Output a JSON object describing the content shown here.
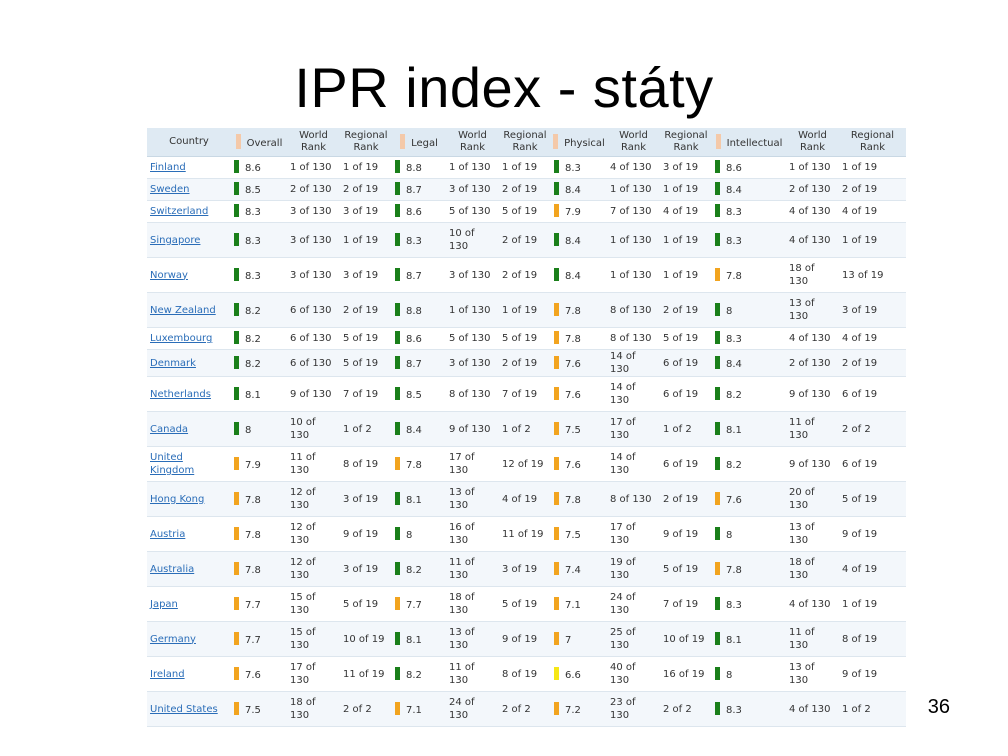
{
  "title": "IPR index - státy",
  "page_number": "36",
  "colors": {
    "green": "#1a7f1a",
    "orange": "#f2a41f",
    "yellow": "#f6e716",
    "header_marker": "#f4c9a9"
  },
  "headers": [
    "Country",
    "Overall",
    "World Rank",
    "Regional Rank",
    "Legal",
    "World Rank",
    "Regional Rank",
    "Physical",
    "World Rank",
    "Regional Rank",
    "Intellectual",
    "World Rank",
    "Regional Rank"
  ],
  "rows": [
    {
      "country": "Finland",
      "overall": "8.6",
      "overall_color": "green",
      "o_world": "1 of 130",
      "o_region": "1 of 19",
      "legal": "8.8",
      "legal_color": "green",
      "l_world": "1 of 130",
      "l_region": "1 of 19",
      "physical": "8.3",
      "physical_color": "green",
      "p_world": "4 of 130",
      "p_region": "3 of 19",
      "intellectual": "8.6",
      "intellectual_color": "green",
      "i_world": "1 of 130",
      "i_region": "1 of 19"
    },
    {
      "country": "Sweden",
      "overall": "8.5",
      "overall_color": "green",
      "o_world": "2 of 130",
      "o_region": "2 of 19",
      "legal": "8.7",
      "legal_color": "green",
      "l_world": "3 of 130",
      "l_region": "2 of 19",
      "physical": "8.4",
      "physical_color": "green",
      "p_world": "1 of 130",
      "p_region": "1 of 19",
      "intellectual": "8.4",
      "intellectual_color": "green",
      "i_world": "2 of 130",
      "i_region": "2 of 19"
    },
    {
      "country": "Switzerland",
      "overall": "8.3",
      "overall_color": "green",
      "o_world": "3 of 130",
      "o_region": "3 of 19",
      "legal": "8.6",
      "legal_color": "green",
      "l_world": "5 of 130",
      "l_region": "5 of 19",
      "physical": "7.9",
      "physical_color": "orange",
      "p_world": "7 of 130",
      "p_region": "4 of 19",
      "intellectual": "8.3",
      "intellectual_color": "green",
      "i_world": "4 of 130",
      "i_region": "4 of 19"
    },
    {
      "country": "Singapore",
      "overall": "8.3",
      "overall_color": "green",
      "o_world": "3 of 130",
      "o_region": "1 of 19",
      "legal": "8.3",
      "legal_color": "green",
      "l_world": "10 of 130",
      "l_region": "2 of 19",
      "physical": "8.4",
      "physical_color": "green",
      "p_world": "1 of 130",
      "p_region": "1 of 19",
      "intellectual": "8.3",
      "intellectual_color": "green",
      "i_world": "4 of 130",
      "i_region": "1 of 19"
    },
    {
      "country": "Norway",
      "overall": "8.3",
      "overall_color": "green",
      "o_world": "3 of 130",
      "o_region": "3 of 19",
      "legal": "8.7",
      "legal_color": "green",
      "l_world": "3 of 130",
      "l_region": "2 of 19",
      "physical": "8.4",
      "physical_color": "green",
      "p_world": "1 of 130",
      "p_region": "1 of 19",
      "intellectual": "7.8",
      "intellectual_color": "orange",
      "i_world": "18 of 130",
      "i_region": "13 of 19"
    },
    {
      "country": "New Zealand",
      "overall": "8.2",
      "overall_color": "green",
      "o_world": "6 of 130",
      "o_region": "2 of 19",
      "legal": "8.8",
      "legal_color": "green",
      "l_world": "1 of 130",
      "l_region": "1 of 19",
      "physical": "7.8",
      "physical_color": "orange",
      "p_world": "8 of 130",
      "p_region": "2 of 19",
      "intellectual": "8",
      "intellectual_color": "green",
      "i_world": "13 of 130",
      "i_region": "3 of 19"
    },
    {
      "country": "Luxembourg",
      "overall": "8.2",
      "overall_color": "green",
      "o_world": "6 of 130",
      "o_region": "5 of 19",
      "legal": "8.6",
      "legal_color": "green",
      "l_world": "5 of 130",
      "l_region": "5 of 19",
      "physical": "7.8",
      "physical_color": "orange",
      "p_world": "8 of 130",
      "p_region": "5 of 19",
      "intellectual": "8.3",
      "intellectual_color": "green",
      "i_world": "4 of 130",
      "i_region": "4 of 19"
    },
    {
      "country": "Denmark",
      "overall": "8.2",
      "overall_color": "green",
      "o_world": "6 of 130",
      "o_region": "5 of 19",
      "legal": "8.7",
      "legal_color": "green",
      "l_world": "3 of 130",
      "l_region": "2 of 19",
      "physical": "7.6",
      "physical_color": "orange",
      "p_world": "14 of 130",
      "p_region": "6 of 19",
      "intellectual": "8.4",
      "intellectual_color": "green",
      "i_world": "2 of 130",
      "i_region": "2 of 19"
    },
    {
      "country": "Netherlands",
      "overall": "8.1",
      "overall_color": "green",
      "o_world": "9 of 130",
      "o_region": "7 of 19",
      "legal": "8.5",
      "legal_color": "green",
      "l_world": "8 of 130",
      "l_region": "7 of 19",
      "physical": "7.6",
      "physical_color": "orange",
      "p_world": "14 of 130",
      "p_region": "6 of 19",
      "intellectual": "8.2",
      "intellectual_color": "green",
      "i_world": "9 of 130",
      "i_region": "6 of 19"
    },
    {
      "country": "Canada",
      "overall": "8",
      "overall_color": "green",
      "o_world": "10 of 130",
      "o_region": "1 of 2",
      "legal": "8.4",
      "legal_color": "green",
      "l_world": "9 of 130",
      "l_region": "1 of 2",
      "physical": "7.5",
      "physical_color": "orange",
      "p_world": "17 of 130",
      "p_region": "1 of 2",
      "intellectual": "8.1",
      "intellectual_color": "green",
      "i_world": "11 of 130",
      "i_region": "2 of 2"
    },
    {
      "country": "United Kingdom",
      "overall": "7.9",
      "overall_color": "orange",
      "o_world": "11 of 130",
      "o_region": "8 of 19",
      "legal": "7.8",
      "legal_color": "orange",
      "l_world": "17 of 130",
      "l_region": "12 of 19",
      "physical": "7.6",
      "physical_color": "orange",
      "p_world": "14 of 130",
      "p_region": "6 of 19",
      "intellectual": "8.2",
      "intellectual_color": "green",
      "i_world": "9 of 130",
      "i_region": "6 of 19"
    },
    {
      "country": "Hong Kong",
      "overall": "7.8",
      "overall_color": "orange",
      "o_world": "12 of 130",
      "o_region": "3 of 19",
      "legal": "8.1",
      "legal_color": "green",
      "l_world": "13 of 130",
      "l_region": "4 of 19",
      "physical": "7.8",
      "physical_color": "orange",
      "p_world": "8 of 130",
      "p_region": "2 of 19",
      "intellectual": "7.6",
      "intellectual_color": "orange",
      "i_world": "20 of 130",
      "i_region": "5 of 19"
    },
    {
      "country": "Austria",
      "overall": "7.8",
      "overall_color": "orange",
      "o_world": "12 of 130",
      "o_region": "9 of 19",
      "legal": "8",
      "legal_color": "green",
      "l_world": "16 of 130",
      "l_region": "11 of 19",
      "physical": "7.5",
      "physical_color": "orange",
      "p_world": "17 of 130",
      "p_region": "9 of 19",
      "intellectual": "8",
      "intellectual_color": "green",
      "i_world": "13 of 130",
      "i_region": "9 of 19"
    },
    {
      "country": "Australia",
      "overall": "7.8",
      "overall_color": "orange",
      "o_world": "12 of 130",
      "o_region": "3 of 19",
      "legal": "8.2",
      "legal_color": "green",
      "l_world": "11 of 130",
      "l_region": "3 of 19",
      "physical": "7.4",
      "physical_color": "orange",
      "p_world": "19 of 130",
      "p_region": "5 of 19",
      "intellectual": "7.8",
      "intellectual_color": "orange",
      "i_world": "18 of 130",
      "i_region": "4 of 19"
    },
    {
      "country": "Japan",
      "overall": "7.7",
      "overall_color": "orange",
      "o_world": "15 of 130",
      "o_region": "5 of 19",
      "legal": "7.7",
      "legal_color": "orange",
      "l_world": "18 of 130",
      "l_region": "5 of 19",
      "physical": "7.1",
      "physical_color": "orange",
      "p_world": "24 of 130",
      "p_region": "7 of 19",
      "intellectual": "8.3",
      "intellectual_color": "green",
      "i_world": "4 of 130",
      "i_region": "1 of 19"
    },
    {
      "country": "Germany",
      "overall": "7.7",
      "overall_color": "orange",
      "o_world": "15 of 130",
      "o_region": "10 of 19",
      "legal": "8.1",
      "legal_color": "green",
      "l_world": "13 of 130",
      "l_region": "9 of 19",
      "physical": "7",
      "physical_color": "orange",
      "p_world": "25 of 130",
      "p_region": "10 of 19",
      "intellectual": "8.1",
      "intellectual_color": "green",
      "i_world": "11 of 130",
      "i_region": "8 of 19"
    },
    {
      "country": "Ireland",
      "overall": "7.6",
      "overall_color": "orange",
      "o_world": "17 of 130",
      "o_region": "11 of 19",
      "legal": "8.2",
      "legal_color": "green",
      "l_world": "11 of 130",
      "l_region": "8 of 19",
      "physical": "6.6",
      "physical_color": "yellow",
      "p_world": "40 of 130",
      "p_region": "16 of 19",
      "intellectual": "8",
      "intellectual_color": "green",
      "i_world": "13 of 130",
      "i_region": "9 of 19"
    },
    {
      "country": "United States",
      "overall": "7.5",
      "overall_color": "orange",
      "o_world": "18 of 130",
      "o_region": "2 of 2",
      "legal": "7.1",
      "legal_color": "orange",
      "l_world": "24 of 130",
      "l_region": "2 of 2",
      "physical": "7.2",
      "physical_color": "orange",
      "p_world": "23 of 130",
      "p_region": "2 of 2",
      "intellectual": "8.3",
      "intellectual_color": "green",
      "i_world": "4 of 130",
      "i_region": "1 of 2"
    }
  ]
}
